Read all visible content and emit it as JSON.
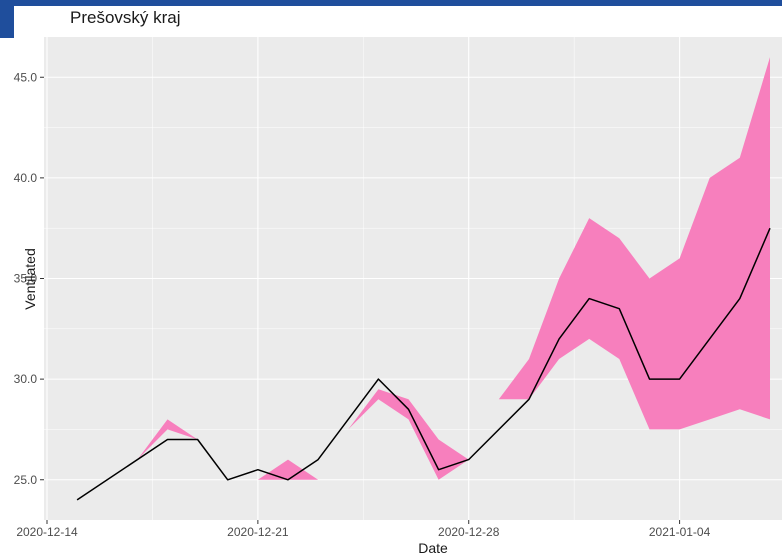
{
  "chart_data": {
    "type": "line",
    "title": "Prešovský kraj",
    "xlabel": "Date",
    "ylabel": "Ventilated",
    "x_ticks": [
      "2020-12-14",
      "2020-12-21",
      "2020-12-28",
      "2021-01-04"
    ],
    "y_ticks": [
      "25.0",
      "30.0",
      "35.0",
      "40.0",
      "45.0"
    ],
    "ylim": [
      23.0,
      47.0
    ],
    "xlim": [
      "2020-12-13.9",
      "2021-01-07.4"
    ],
    "grid": true,
    "colors": {
      "band": "#f77fbd",
      "line": "#000000",
      "panel": "#ebebeb",
      "grid": "#ffffff"
    },
    "series": [
      {
        "type": "line",
        "x": [
          "2020-12-15",
          "2020-12-18",
          "2020-12-19",
          "2020-12-20",
          "2020-12-21",
          "2020-12-22",
          "2020-12-23",
          "2020-12-25",
          "2020-12-26",
          "2020-12-27",
          "2020-12-28",
          "2020-12-30",
          "2020-12-31",
          "2021-01-01",
          "2021-01-02",
          "2021-01-03",
          "2021-01-04",
          "2021-01-06",
          "2021-01-07"
        ],
        "y": [
          24.0,
          27.0,
          27.0,
          25.0,
          25.5,
          25.0,
          26.0,
          30.0,
          28.5,
          25.5,
          26.0,
          29.0,
          32.0,
          34.0,
          33.5,
          30.0,
          30.0,
          34.0,
          37.5
        ]
      },
      {
        "type": "band",
        "x": [
          "2020-12-17",
          "2020-12-18",
          "2020-12-19",
          "2020-12-21",
          "2020-12-22",
          "2020-12-23",
          "2020-12-24",
          "2020-12-25",
          "2020-12-26",
          "2020-12-27",
          "2020-12-28",
          "2020-12-29",
          "2020-12-30",
          "2020-12-31",
          "2021-01-01",
          "2021-01-02",
          "2021-01-03",
          "2021-01-04",
          "2021-01-05",
          "2021-01-06",
          "2021-01-07"
        ],
        "lower": [
          26.0,
          27.5,
          27.0,
          25.0,
          25.0,
          25.0,
          27.5,
          29.0,
          28.0,
          25.0,
          26.0,
          29.0,
          29.0,
          31.0,
          32.0,
          31.0,
          27.5,
          27.5,
          28.0,
          28.5,
          28.0
        ],
        "upper": [
          26.0,
          28.0,
          27.0,
          25.0,
          26.0,
          25.0,
          27.5,
          29.5,
          29.0,
          27.0,
          26.0,
          29.0,
          31.0,
          35.0,
          38.0,
          37.0,
          35.0,
          36.0,
          40.0,
          41.0,
          46.0
        ]
      }
    ]
  }
}
